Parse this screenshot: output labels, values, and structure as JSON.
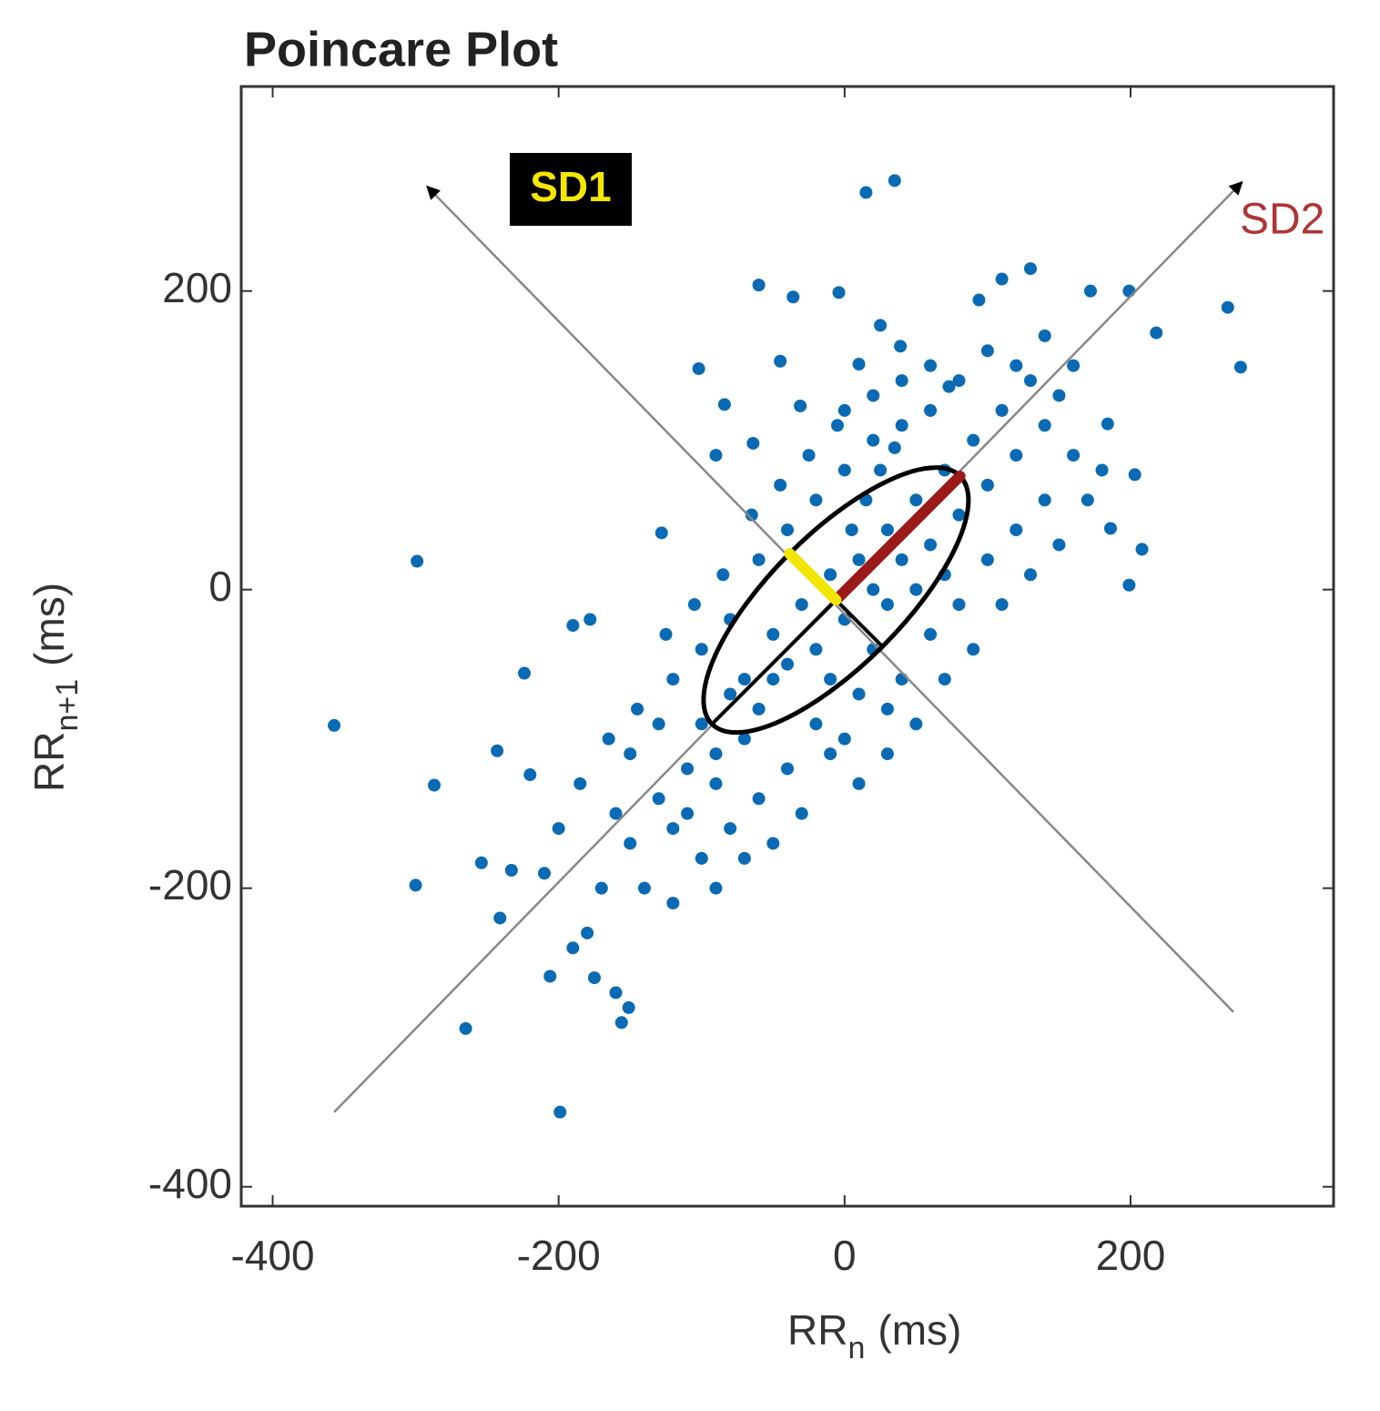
{
  "chart_data": {
    "type": "scatter",
    "title": "Poincare Plot",
    "xlabel": [
      "RR",
      "n",
      "(ms)"
    ],
    "ylabel": [
      "RR",
      "n+1",
      "(ms)"
    ],
    "xlim": [
      -422,
      342
    ],
    "ylim": [
      -413,
      337
    ],
    "xticks": [
      -400,
      -200,
      0,
      200
    ],
    "yticks": [
      -400,
      -200,
      0,
      200
    ],
    "grid": false,
    "color": "#0a6ab4",
    "x": [
      -357,
      -299,
      -300,
      -287,
      -265,
      -199,
      15,
      35,
      268,
      277,
      199,
      218,
      130,
      110,
      -60,
      -36,
      -4,
      -102,
      -45,
      -128,
      -190,
      -178,
      -224,
      -243,
      -220,
      -254,
      -233,
      -241,
      -206,
      -156,
      -151,
      199,
      208,
      203,
      186,
      184,
      172,
      94,
      73,
      25,
      39,
      10,
      -31,
      -64,
      -90,
      -84,
      -150,
      -160,
      -130,
      -120,
      -170,
      -180,
      -140,
      -110,
      -100,
      -90,
      -80,
      -70,
      -60,
      -50,
      -40,
      -30,
      -20,
      -10,
      0,
      10,
      20,
      30,
      40,
      50,
      60,
      70,
      80,
      90,
      100,
      110,
      120,
      130,
      140,
      150,
      160,
      -60,
      -40,
      -20,
      0,
      20,
      40,
      60,
      -80,
      -100,
      -120,
      -130,
      -150,
      20,
      40,
      60,
      80,
      100,
      120,
      140,
      -20,
      0,
      -40,
      -60,
      -80,
      -100,
      30,
      50,
      10,
      -10,
      5,
      15,
      25,
      35,
      -5,
      -25,
      -45,
      -65,
      -85,
      -105,
      -125,
      -145,
      -165,
      -185,
      -200,
      -210,
      -190,
      -175,
      -160,
      -120,
      -90,
      -70,
      -50,
      -30,
      -10,
      10,
      30,
      70,
      90,
      110,
      130,
      150,
      170,
      180,
      160,
      140,
      120,
      100,
      80,
      60,
      40,
      20,
      0,
      70,
      50,
      30,
      -50,
      -70,
      -90,
      -110
    ],
    "values": [
      -91,
      19,
      -198,
      -131,
      -294,
      -350,
      266,
      274,
      189,
      149,
      200,
      172,
      215,
      208,
      204,
      196,
      199,
      148,
      153,
      38,
      -24,
      -20,
      -56,
      -108,
      -124,
      -183,
      -188,
      -220,
      -259,
      -290,
      -280,
      3,
      27,
      77,
      41,
      111,
      200,
      194,
      136,
      177,
      163,
      151,
      123,
      98,
      90,
      124,
      -170,
      -150,
      -140,
      -160,
      -200,
      -230,
      -200,
      -120,
      -90,
      -110,
      -70,
      -60,
      -80,
      -30,
      -50,
      -10,
      -40,
      10,
      -20,
      20,
      0,
      40,
      20,
      60,
      30,
      80,
      50,
      100,
      70,
      120,
      90,
      140,
      110,
      130,
      90,
      20,
      40,
      60,
      80,
      100,
      110,
      120,
      -20,
      -40,
      -60,
      -90,
      -110,
      -40,
      -60,
      -30,
      -10,
      20,
      40,
      60,
      -90,
      -100,
      -120,
      -140,
      -160,
      -180,
      -80,
      -90,
      -70,
      -60,
      40,
      60,
      80,
      95,
      110,
      90,
      70,
      50,
      10,
      -10,
      -30,
      -80,
      -100,
      -130,
      -160,
      -190,
      -240,
      -260,
      -270,
      -210,
      -200,
      -180,
      -170,
      -150,
      -110,
      -130,
      -110,
      -60,
      -40,
      -10,
      10,
      30,
      60,
      80,
      150,
      170,
      150,
      160,
      140,
      150,
      140,
      130,
      120,
      10,
      0,
      -10,
      -60,
      -100,
      -130,
      -150
    ],
    "ellipse": {
      "center": [
        -6,
        -7
      ],
      "sd1": 45,
      "sd2": 120
    },
    "sd1_axis": [
      [
        -292,
        270
      ],
      [
        272,
        -283
      ]
    ],
    "sd2_axis": [
      [
        -357,
        -350
      ],
      [
        278,
        273
      ]
    ],
    "annotations": [
      "SD1",
      "SD2"
    ]
  }
}
